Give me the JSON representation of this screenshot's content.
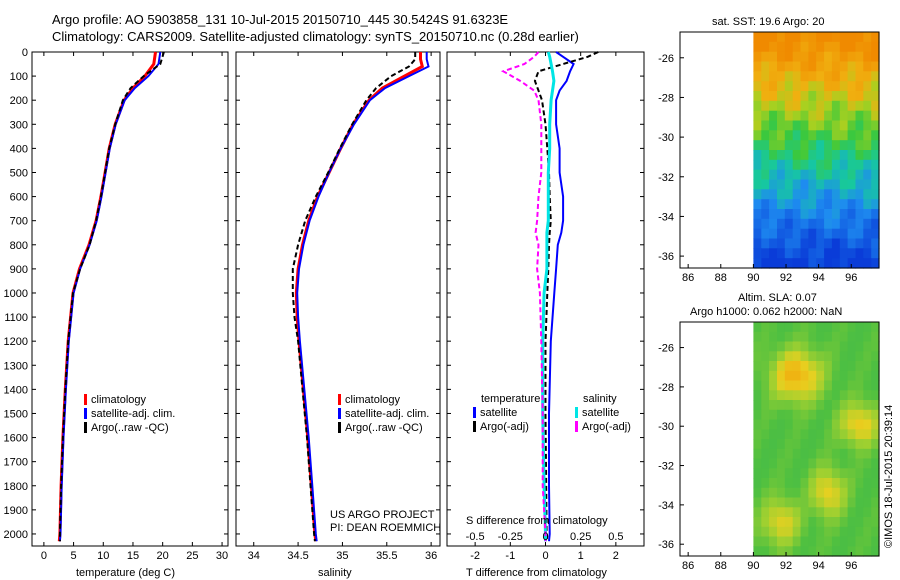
{
  "header": {
    "line1": "Argo profile: AO 5903858_131 10-Jul-2015 20150710_445 30.5424S 91.6323E",
    "line2": "Climatology: CARS2009. Satellite-adjusted climatology: synTS_20150710.nc (0.28d earlier)"
  },
  "colors": {
    "climatology": "#ff0000",
    "satellite": "#0000ff",
    "argo": "#000000",
    "salinity_satellite": "#00e5e5",
    "salinity_argo": "#ff00ff"
  },
  "chart_data": [
    {
      "type": "line",
      "title": "",
      "xlabel": "temperature (deg C)",
      "ylabel": "",
      "xlim": [
        -2,
        31
      ],
      "ylim": [
        2050,
        0
      ],
      "x_ticks": [
        "0",
        "5",
        "10",
        "15",
        "20",
        "25",
        "30"
      ],
      "y_ticks": [
        "0",
        "100",
        "200",
        "300",
        "400",
        "500",
        "600",
        "700",
        "800",
        "900",
        "1000",
        "1100",
        "1200",
        "1300",
        "1400",
        "1500",
        "1600",
        "1700",
        "1800",
        "1900",
        "2000"
      ],
      "depth": [
        0,
        50,
        100,
        150,
        200,
        300,
        400,
        500,
        600,
        700,
        800,
        900,
        1000,
        1200,
        1400,
        1600,
        1800,
        2000,
        2030
      ],
      "series": [
        {
          "name": "climatology",
          "values": [
            18.8,
            18.5,
            17.0,
            15.0,
            13.5,
            12.0,
            11.0,
            10.3,
            9.6,
            8.8,
            7.6,
            6.0,
            4.9,
            4.1,
            3.6,
            3.2,
            2.9,
            2.7,
            2.6
          ]
        },
        {
          "name": "satellite-adj. clim.",
          "values": [
            19.6,
            19.3,
            17.6,
            15.3,
            13.6,
            12.1,
            11.1,
            10.4,
            9.7,
            8.9,
            7.7,
            6.1,
            5.0,
            4.2,
            3.7,
            3.3,
            3.0,
            2.8,
            2.7
          ]
        },
        {
          "name": "Argo(..raw -QC)",
          "values": [
            20.2,
            19.6,
            16.8,
            14.6,
            13.3,
            12.0,
            11.0,
            10.3,
            9.6,
            8.8,
            7.7,
            6.1,
            4.9,
            4.1,
            3.6,
            3.2,
            2.9,
            2.7,
            2.7
          ]
        }
      ],
      "legend": [
        "climatology",
        "satellite-adj. clim.",
        "Argo(..raw -QC)"
      ]
    },
    {
      "type": "line",
      "xlabel": "salinity",
      "xlim": [
        33.8,
        36.1
      ],
      "ylim": [
        2050,
        0
      ],
      "x_ticks": [
        "34",
        "34.5",
        "35",
        "35.5",
        "36"
      ],
      "depth": [
        0,
        30,
        60,
        100,
        150,
        200,
        300,
        400,
        500,
        600,
        700,
        800,
        900,
        1000,
        1100,
        1200,
        1400,
        1600,
        1800,
        2000,
        2030
      ],
      "series": [
        {
          "name": "climatology",
          "values": [
            35.88,
            35.88,
            35.9,
            35.7,
            35.45,
            35.3,
            35.12,
            34.98,
            34.85,
            34.72,
            34.62,
            34.55,
            34.5,
            34.48,
            34.49,
            34.51,
            34.56,
            34.61,
            34.65,
            34.69,
            34.7
          ]
        },
        {
          "name": "satellite-adj. clim.",
          "values": [
            35.95,
            35.95,
            35.97,
            35.75,
            35.48,
            35.31,
            35.13,
            34.98,
            34.85,
            34.73,
            34.63,
            34.56,
            34.51,
            34.49,
            34.5,
            34.52,
            34.57,
            34.62,
            34.66,
            34.7,
            34.71
          ]
        },
        {
          "name": "Argo(..raw -QC)",
          "values": [
            35.82,
            35.82,
            35.75,
            35.55,
            35.38,
            35.27,
            35.11,
            34.97,
            34.84,
            34.7,
            34.58,
            34.5,
            34.44,
            34.44,
            34.46,
            34.5,
            34.55,
            34.6,
            34.64,
            34.68,
            34.69
          ]
        }
      ],
      "legend": [
        "climatology",
        "satellite-adj. clim.",
        "Argo(..raw -QC)"
      ],
      "annotations": [
        "US ARGO PROJECT",
        "PI: DEAN ROEMMICH"
      ]
    },
    {
      "type": "line",
      "xlabel": "T difference from climatology",
      "xlabel_top": "S difference from climatology",
      "xlim": [
        -2.8,
        2.8
      ],
      "ylim": [
        2050,
        0
      ],
      "x_ticks": [
        "-2",
        "-1",
        "0",
        "1",
        "2"
      ],
      "x_ticks_top": [
        "-0.5",
        "-0.25",
        "0",
        "0.25",
        "0.5"
      ],
      "depth": [
        0,
        20,
        50,
        80,
        120,
        160,
        200,
        300,
        400,
        500,
        600,
        700,
        750,
        800,
        900,
        1000,
        1200,
        1500,
        1800,
        2000,
        2030
      ],
      "series": [
        {
          "name": "temperature satellite",
          "values": [
            0.3,
            0.5,
            0.8,
            0.7,
            0.6,
            0.4,
            0.3,
            0.3,
            0.4,
            0.4,
            0.5,
            0.5,
            0.45,
            0.35,
            0.3,
            0.25,
            0.15,
            0.1,
            0.1,
            0.12,
            0.1
          ]
        },
        {
          "name": "temperature Argo(-adj)",
          "values": [
            1.5,
            1.2,
            0.5,
            -0.2,
            -0.3,
            -0.2,
            -0.1,
            0.0,
            0.05,
            0.1,
            0.12,
            0.15,
            0.12,
            0.1,
            0.08,
            0.05,
            0.0,
            0.0,
            0.02,
            0.03,
            0.05
          ]
        },
        {
          "name": "salinity satellite",
          "values": [
            0.02,
            0.03,
            0.04,
            0.05,
            0.06,
            0.05,
            0.04,
            0.03,
            0.03,
            0.02,
            0.02,
            0.02,
            0.01,
            0.01,
            0.01,
            -0.01,
            -0.02,
            -0.02,
            -0.01,
            0.0,
            0.0
          ]
        },
        {
          "name": "salinity Argo(-adj)",
          "values": [
            -0.05,
            -0.08,
            -0.15,
            -0.3,
            -0.18,
            -0.08,
            -0.05,
            -0.03,
            -0.03,
            -0.03,
            -0.05,
            -0.06,
            -0.07,
            -0.05,
            -0.06,
            -0.04,
            -0.03,
            -0.02,
            -0.02,
            0.0,
            0.0
          ]
        }
      ],
      "legend_titles": [
        "temperature",
        "salinity"
      ],
      "legend": [
        "satellite",
        "Argo(-adj)",
        "satellite",
        "Argo(-adj)"
      ]
    },
    {
      "type": "heatmap",
      "title": "sat. SST: 19.6 Argo: 20",
      "x_ticks": [
        "86",
        "88",
        "90",
        "92",
        "94",
        "96"
      ],
      "y_ticks": [
        "-26",
        "-28",
        "-30",
        "-32",
        "-34",
        "-36"
      ],
      "xlim": [
        85.5,
        97.7
      ],
      "ylim": [
        -36.6,
        -24.7
      ],
      "data_lon_range": [
        90,
        97.7
      ]
    },
    {
      "type": "heatmap",
      "title": "Altim. SLA: 0.07",
      "subtitle": "Argo h1000: 0.062 h2000: NaN",
      "x_ticks": [
        "86",
        "88",
        "90",
        "92",
        "94",
        "96"
      ],
      "y_ticks": [
        "-26",
        "-28",
        "-30",
        "-32",
        "-34",
        "-36"
      ],
      "xlim": [
        85.5,
        97.7
      ],
      "ylim": [
        -36.6,
        -24.7
      ],
      "data_lon_range": [
        90,
        97.7
      ]
    }
  ],
  "footer": {
    "credit": "©IMOS 18-Jul-2015 20:39:14"
  }
}
